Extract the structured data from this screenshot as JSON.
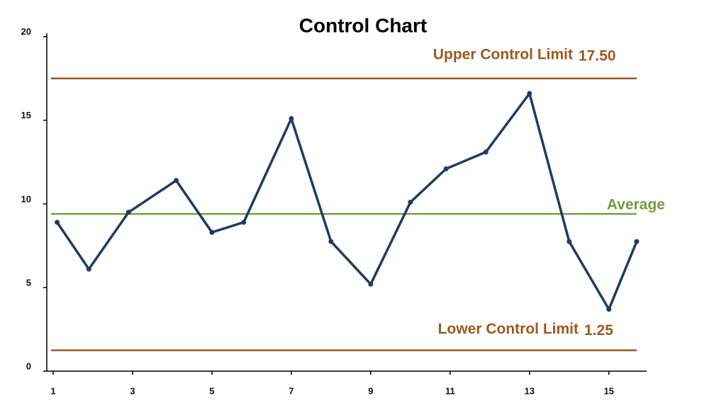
{
  "chart_data": {
    "type": "line",
    "title": "Control Chart",
    "x": [
      1.1,
      1.9,
      2.9,
      4.1,
      5,
      5.8,
      7,
      8,
      9,
      10,
      10.9,
      11.9,
      13,
      14,
      15,
      15.7
    ],
    "values": [
      8.9,
      6.1,
      9.5,
      11.4,
      8.3,
      8.9,
      15.1,
      7.75,
      5.2,
      10.1,
      12.1,
      13.1,
      16.6,
      7.75,
      3.7,
      7.75
    ],
    "color": "#1f3b63",
    "xlim": [
      0.84,
      15.95
    ],
    "xticks": [
      1,
      3,
      5,
      7,
      9,
      11,
      13,
      15
    ],
    "ylim": [
      0,
      20.2
    ],
    "yticks": [
      0,
      5,
      10,
      15,
      20
    ],
    "lines": [
      {
        "label": "Upper Control Limit",
        "value": 17.5,
        "value_label": "17.50",
        "color": "#9a5a1e"
      },
      {
        "label": "Lower Control Limit",
        "value": 1.25,
        "color": "#9a5a1e"
      },
      {
        "label": "Average",
        "value": 9.4,
        "color": "#7a9a3f"
      }
    ]
  }
}
